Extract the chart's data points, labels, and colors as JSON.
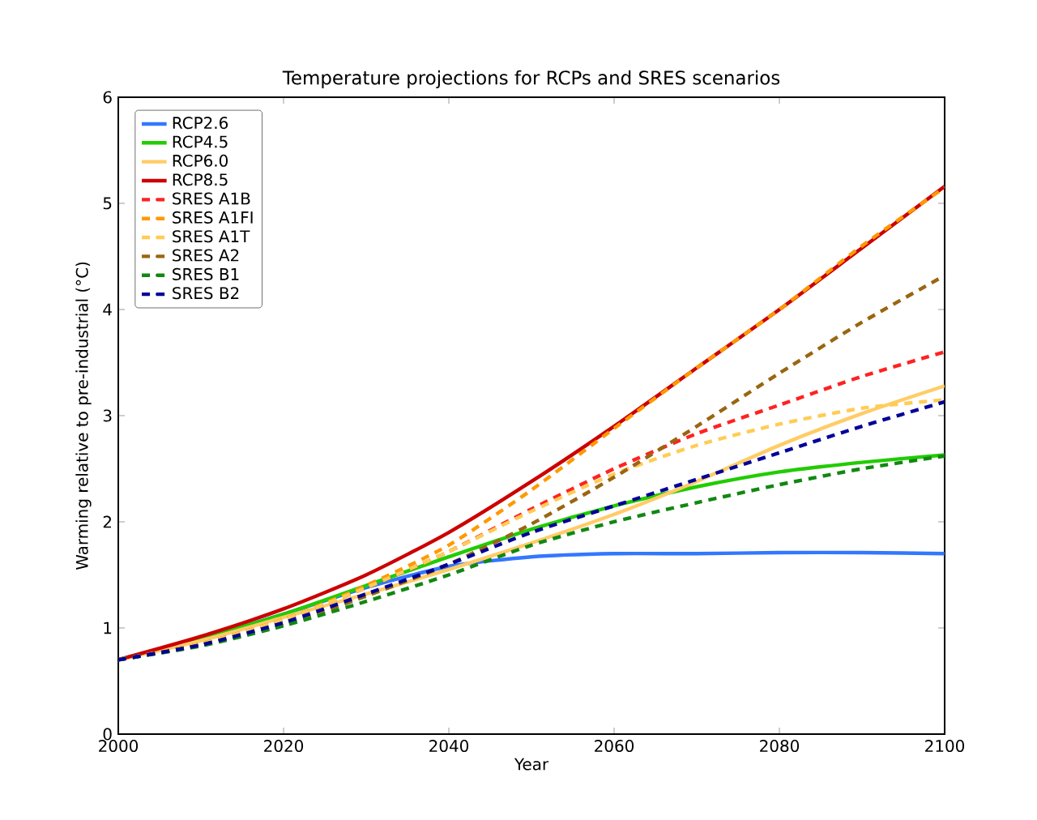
{
  "chart_data": {
    "type": "line",
    "title": "Temperature projections for RCPs and SRES scenarios",
    "xlabel": "Year",
    "ylabel": "Warming relative to pre-industrial (°C)",
    "x": [
      2000,
      2010,
      2020,
      2030,
      2040,
      2050,
      2060,
      2070,
      2080,
      2090,
      2100
    ],
    "xlim": [
      2000,
      2100
    ],
    "xticks": [
      2000,
      2020,
      2040,
      2060,
      2080,
      2100
    ],
    "ylim": [
      0,
      6
    ],
    "yticks": [
      0,
      1,
      2,
      3,
      4,
      5,
      6
    ],
    "grid": false,
    "legend": "top left",
    "marker": "none",
    "series": [
      {
        "name": "RCP2.6",
        "color": "#3377ff",
        "line_style": "solid",
        "values": [
          0.7,
          0.9,
          1.13,
          1.38,
          1.58,
          1.67,
          1.7,
          1.7,
          1.71,
          1.71,
          1.7
        ]
      },
      {
        "name": "RCP4.5",
        "color": "#22cc00",
        "line_style": "solid",
        "values": [
          0.7,
          0.9,
          1.13,
          1.4,
          1.67,
          1.93,
          2.15,
          2.33,
          2.47,
          2.56,
          2.63
        ]
      },
      {
        "name": "RCP6.0",
        "color": "#ffcc66",
        "line_style": "solid",
        "values": [
          0.7,
          0.88,
          1.1,
          1.32,
          1.55,
          1.8,
          2.07,
          2.38,
          2.72,
          3.02,
          3.28
        ]
      },
      {
        "name": "RCP8.5",
        "color": "#cc0000",
        "line_style": "solid",
        "values": [
          0.7,
          0.92,
          1.18,
          1.5,
          1.9,
          2.38,
          2.9,
          3.45,
          4.0,
          4.58,
          5.16
        ]
      },
      {
        "name": "SRES A1B",
        "color": "#ff2222",
        "line_style": "dashed",
        "values": [
          0.7,
          0.85,
          1.08,
          1.38,
          1.72,
          2.12,
          2.5,
          2.83,
          3.1,
          3.37,
          3.6
        ]
      },
      {
        "name": "SRES A1FI",
        "color": "#ff9900",
        "line_style": "dashed",
        "values": [
          0.7,
          0.85,
          1.08,
          1.4,
          1.78,
          2.3,
          2.88,
          3.45,
          4.0,
          4.6,
          5.15
        ]
      },
      {
        "name": "SRES A1T",
        "color": "#ffcc55",
        "line_style": "dashed",
        "values": [
          0.7,
          0.85,
          1.08,
          1.38,
          1.72,
          2.1,
          2.45,
          2.72,
          2.92,
          3.07,
          3.15
        ]
      },
      {
        "name": "SRES A2",
        "color": "#996611",
        "line_style": "dashed",
        "values": [
          0.7,
          0.84,
          1.03,
          1.3,
          1.6,
          1.98,
          2.42,
          2.9,
          3.4,
          3.88,
          4.32
        ]
      },
      {
        "name": "SRES B1",
        "color": "#118811",
        "line_style": "dashed",
        "values": [
          0.7,
          0.83,
          1.02,
          1.25,
          1.5,
          1.78,
          2.0,
          2.18,
          2.35,
          2.5,
          2.62
        ]
      },
      {
        "name": "SRES B2",
        "color": "#000099",
        "line_style": "dashed",
        "values": [
          0.7,
          0.84,
          1.05,
          1.32,
          1.6,
          1.9,
          2.15,
          2.4,
          2.65,
          2.9,
          3.13
        ]
      }
    ]
  }
}
